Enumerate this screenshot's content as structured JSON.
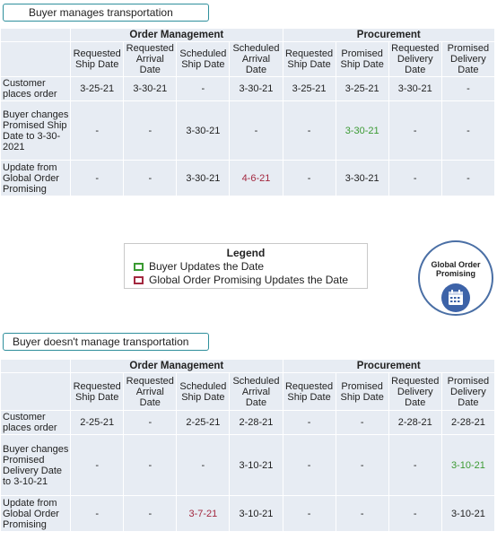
{
  "callout1": "Buyer manages transportation",
  "callout2": "Buyer doesn't manage transportation",
  "groups": {
    "order_management": "Order Management",
    "procurement": "Procurement"
  },
  "table1": {
    "headers": [
      "Requested Ship Date",
      "Requested Arrival Date",
      "Scheduled Ship Date",
      "Scheduled Arrival Date",
      "Requested Ship Date",
      "Promised Ship Date",
      "Requested Delivery Date",
      "Promised Delivery Date"
    ],
    "rows": [
      {
        "label": "Customer places order",
        "cells": [
          "3-25-21",
          "3-30-21",
          "-",
          "3-30-21",
          "3-25-21",
          "3-25-21",
          "3-30-21",
          "-"
        ]
      },
      {
        "label": "Buyer changes Promised Ship Date to 3-30-2021",
        "cells": [
          "-",
          "-",
          "3-30-21",
          "-",
          "-",
          "3-30-21",
          "-",
          "-"
        ]
      },
      {
        "label": "Update from Global Order Promising",
        "cells": [
          "-",
          "-",
          "3-30-21",
          "4-6-21",
          "-",
          "3-30-21",
          "-",
          "-"
        ]
      }
    ]
  },
  "table2": {
    "headers": [
      "Requested Ship Date",
      "Requested Arrival Date",
      "Scheduled Ship Date",
      "Scheduled Arrival Date",
      "Requested Ship Date",
      "Promised Ship Date",
      "Requested Delivery Date",
      "Promised Delivery Date"
    ],
    "rows": [
      {
        "label": "Customer places order",
        "cells": [
          "2-25-21",
          "-",
          "2-25-21",
          "2-28-21",
          "-",
          "-",
          "2-28-21",
          "2-28-21"
        ]
      },
      {
        "label": "Buyer changes Promised Delivery Date to 3-10-21",
        "cells": [
          "-",
          "-",
          "-",
          "3-10-21",
          "-",
          "-",
          "-",
          "3-10-21"
        ]
      },
      {
        "label": "Update from Global Order Promising",
        "cells": [
          "-",
          "-",
          "3-7-21",
          "3-10-21",
          "-",
          "-",
          "-",
          "3-10-21"
        ]
      }
    ]
  },
  "legend": {
    "title": "Legend",
    "buyer": "Buyer Updates the Date",
    "gop": "Global Order Promising Updates the Date",
    "buyer_color": "#3a9a32",
    "gop_color": "#a3283f"
  },
  "badge": {
    "text": "Global Order Promising",
    "icon": "calendar-icon"
  }
}
